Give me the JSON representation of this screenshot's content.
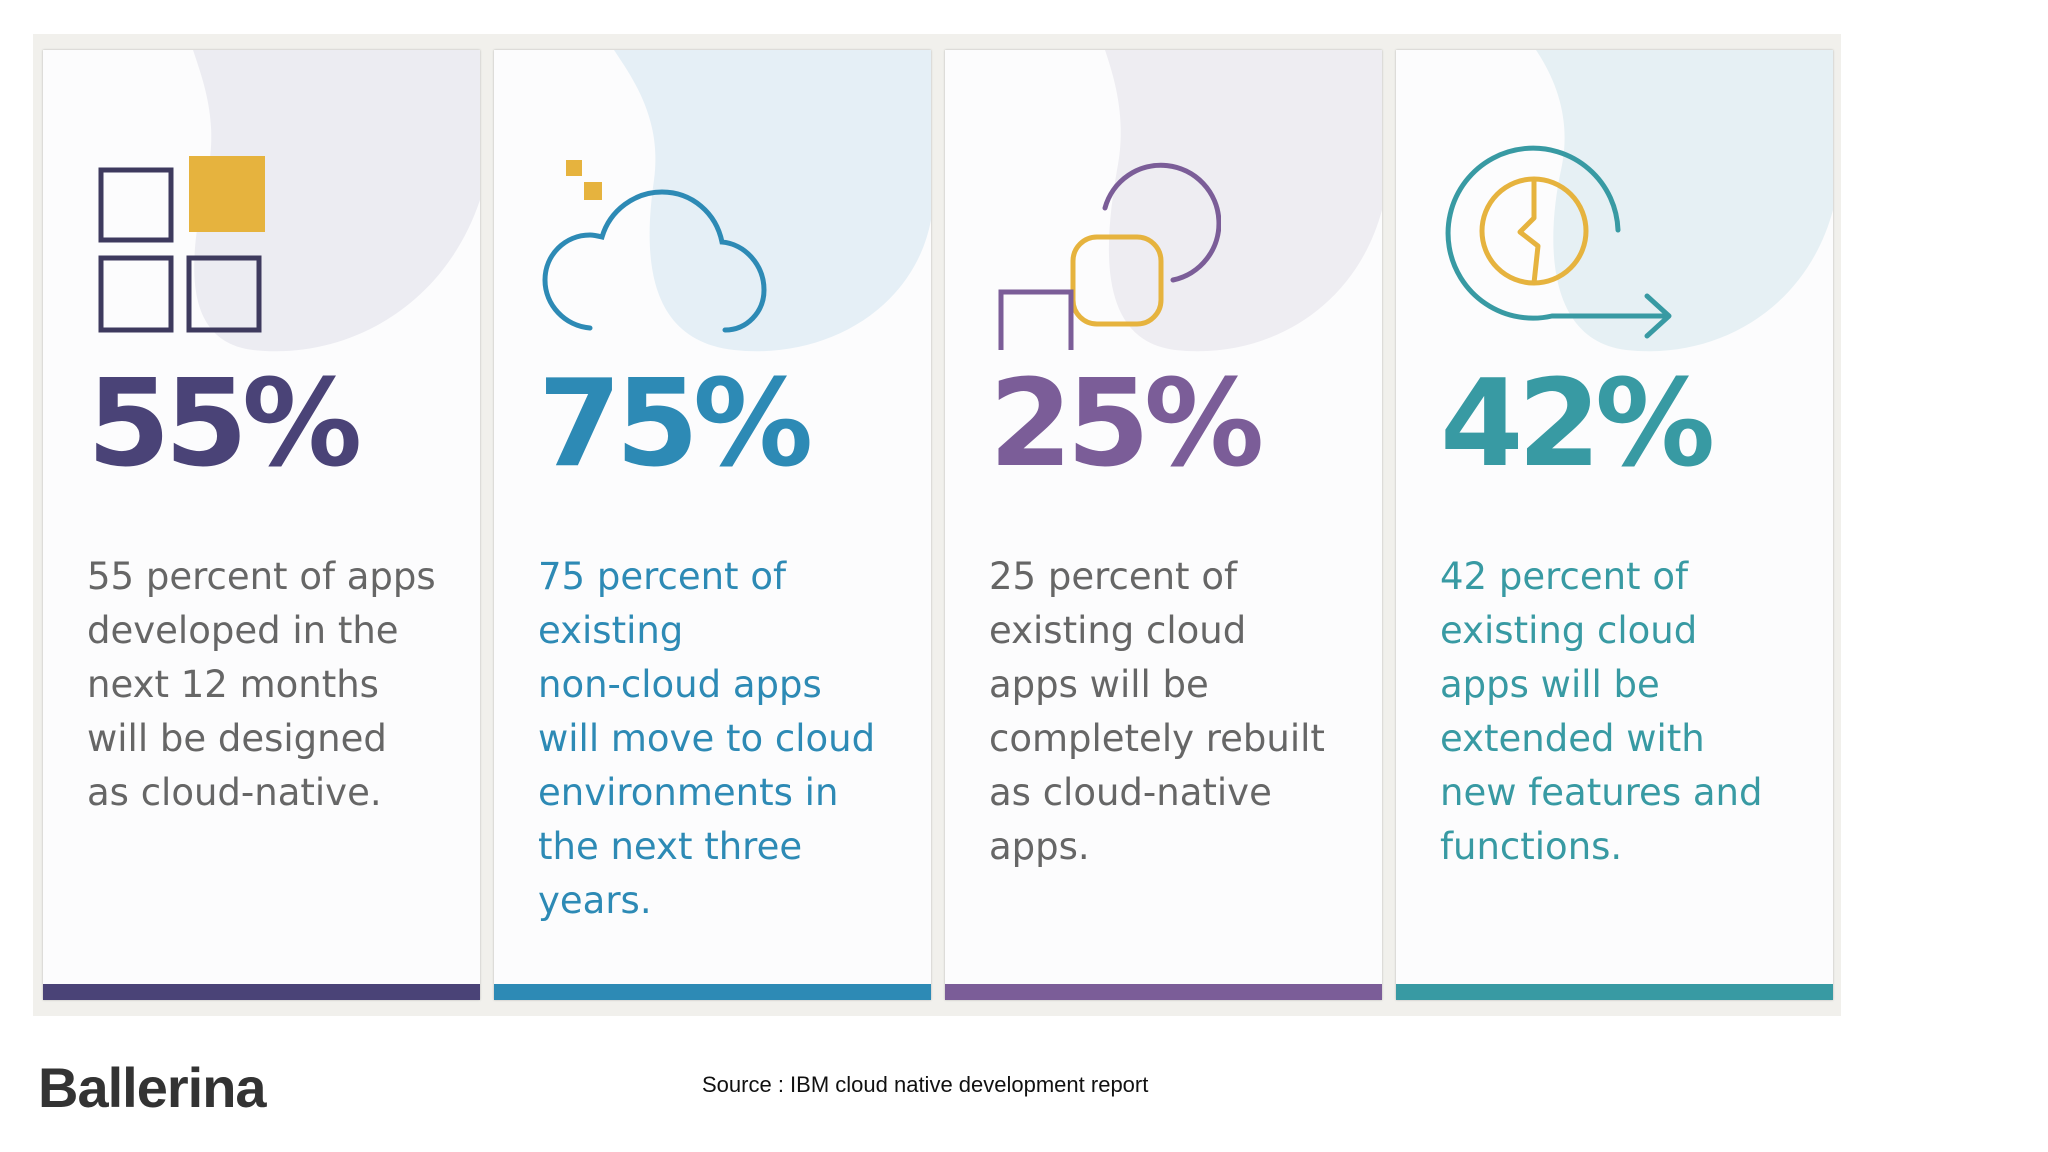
{
  "colors": {
    "navy": "#4a4377",
    "blue": "#2d8ab5",
    "purple": "#7b5d98",
    "teal": "#389aa3",
    "gold": "#e6b33e",
    "gray_text": "#666666"
  },
  "cards": [
    {
      "percent": "55%",
      "lines": [
        "55 percent of apps",
        "developed in the",
        "next 12 months",
        "will be designed",
        "as cloud-native."
      ],
      "icon": "grid-squares-icon"
    },
    {
      "percent": "75%",
      "lines": [
        "75 percent of",
        "existing",
        "non-cloud apps",
        "will move to cloud",
        "environments in",
        "the next three",
        "years."
      ],
      "icon": "cloud-icon"
    },
    {
      "percent": "25%",
      "lines": [
        "25 percent of",
        "existing cloud",
        "apps will be",
        "completely rebuilt",
        "as cloud-native",
        "apps."
      ],
      "icon": "rebuild-shapes-icon"
    },
    {
      "percent": "42%",
      "lines": [
        "42 percent of",
        "existing cloud",
        "apps will be",
        "extended with",
        "new features and",
        "functions."
      ],
      "icon": "extend-arrow-icon"
    }
  ],
  "footer": {
    "logo": "Ballerina",
    "source": "Source : IBM cloud native development report"
  }
}
